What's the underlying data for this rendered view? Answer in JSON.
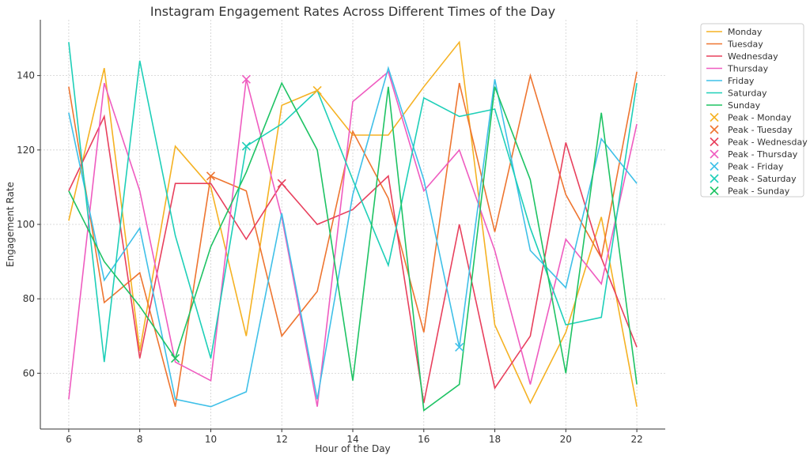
{
  "chart_data": {
    "type": "line",
    "title": "Instagram Engagement Rates Across Different Times of the Day",
    "xlabel": "Hour of the Day",
    "ylabel": "Engagement Rate",
    "x": [
      6,
      7,
      8,
      9,
      10,
      11,
      12,
      13,
      14,
      15,
      16,
      17,
      18,
      19,
      20,
      21,
      22
    ],
    "xlim": [
      5.2,
      22.8
    ],
    "ylim": [
      45,
      155
    ],
    "xticks": [
      6,
      8,
      10,
      12,
      14,
      16,
      18,
      20,
      22
    ],
    "yticks": [
      60,
      80,
      100,
      120,
      140
    ],
    "grid": true,
    "legend_position": "outside-top-right",
    "series": [
      {
        "name": "Monday",
        "color": "#f5b223",
        "values": [
          101,
          142,
          66,
          121,
          110,
          70,
          132,
          136,
          124,
          124,
          137,
          149,
          73,
          52,
          71,
          102,
          51
        ]
      },
      {
        "name": "Tuesday",
        "color": "#ee7530",
        "values": [
          137,
          79,
          87,
          51,
          113,
          109,
          70,
          82,
          125,
          107,
          71,
          138,
          98,
          140,
          108,
          91,
          141
        ]
      },
      {
        "name": "Wednesday",
        "color": "#e8405d",
        "values": [
          109,
          129,
          64,
          111,
          111,
          96,
          111,
          100,
          104,
          113,
          52,
          100,
          56,
          70,
          122,
          91,
          67
        ]
      },
      {
        "name": "Thursday",
        "color": "#ef5cc0",
        "values": [
          53,
          138,
          109,
          63,
          58,
          139,
          102,
          51,
          133,
          141,
          109,
          120,
          93,
          57,
          96,
          84,
          127
        ]
      },
      {
        "name": "Friday",
        "color": "#3fc0e8",
        "values": [
          130,
          85,
          99,
          53,
          51,
          55,
          103,
          53,
          108,
          142,
          112,
          67,
          139,
          93,
          83,
          123,
          111
        ]
      },
      {
        "name": "Saturday",
        "color": "#1ecfb8",
        "values": [
          149,
          63,
          144,
          97,
          64,
          121,
          127,
          136,
          112,
          89,
          134,
          129,
          131,
          99,
          73,
          75,
          138
        ]
      },
      {
        "name": "Sunday",
        "color": "#1ec364",
        "values": [
          109,
          90,
          78,
          64,
          94,
          114,
          138,
          120,
          58,
          137,
          50,
          57,
          137,
          112,
          60,
          130,
          57
        ]
      }
    ],
    "peaks": [
      {
        "name": "Peak - Monday",
        "color": "#f5b223",
        "x": 13,
        "y": 136
      },
      {
        "name": "Peak - Tuesday",
        "color": "#ee7530",
        "x": 10,
        "y": 113
      },
      {
        "name": "Peak - Wednesday",
        "color": "#e8405d",
        "x": 12,
        "y": 111
      },
      {
        "name": "Peak - Thursday",
        "color": "#ef5cc0",
        "x": 11,
        "y": 139
      },
      {
        "name": "Peak - Friday",
        "color": "#3fc0e8",
        "x": 17,
        "y": 67
      },
      {
        "name": "Peak - Saturday",
        "color": "#1ecfb8",
        "x": 11,
        "y": 121
      },
      {
        "name": "Peak - Sunday",
        "color": "#1ec364",
        "x": 9,
        "y": 64
      }
    ]
  }
}
